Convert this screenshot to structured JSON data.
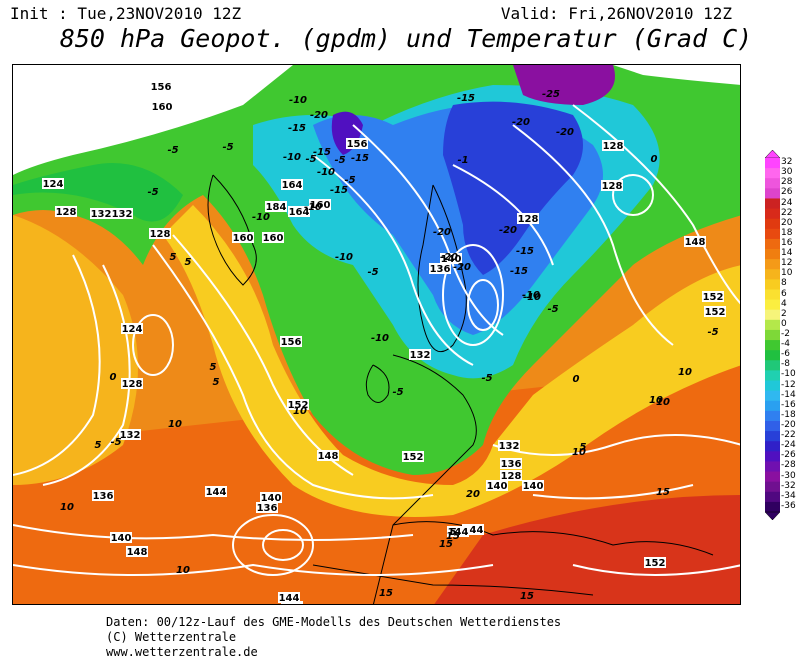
{
  "header": {
    "init": "Init : Tue,23NOV2010 12Z",
    "valid": "Valid: Fri,26NOV2010 12Z",
    "title": "850 hPa Geopot. (gpdm) und Temperatur (Grad C)"
  },
  "footer": {
    "line1": "Daten: 00/12z-Lauf des GME-Modells des Deutschen Wetterdienstes",
    "line2": "(C) Wetterzentrale",
    "line3": "www.wetterzentrale.de"
  },
  "colorbar": {
    "labels": [
      "32",
      "30",
      "28",
      "26",
      "24",
      "22",
      "20",
      "18",
      "16",
      "14",
      "12",
      "10",
      "8",
      "6",
      "4",
      "2",
      "0",
      "-2",
      "-4",
      "-6",
      "-8",
      "-10",
      "-12",
      "-14",
      "-16",
      "-18",
      "-20",
      "-22",
      "-24",
      "-26",
      "-28",
      "-30",
      "-32",
      "-34",
      "-36"
    ],
    "colors": [
      "#ff44ff",
      "#ff66ee",
      "#ee55dd",
      "#dd44cc",
      "#cc2222",
      "#d82a1a",
      "#e03a10",
      "#e84a10",
      "#ee6a10",
      "#f07e10",
      "#f49a18",
      "#f6b41c",
      "#f8cc20",
      "#fae030",
      "#fbee40",
      "#f6f47a",
      "#b4e84a",
      "#7ed838",
      "#40c830",
      "#20c040",
      "#20c878",
      "#20d0b0",
      "#20c8d8",
      "#30b8f0",
      "#2aa0f0",
      "#3080f0",
      "#3060e8",
      "#2840d8",
      "#3020c8",
      "#5010c0",
      "#7010b0",
      "#8a10a0",
      "#701090",
      "#500880",
      "#300060"
    ]
  },
  "map_labels": {
    "geopotential": [
      "156",
      "160",
      "156",
      "164",
      "184",
      "164",
      "160",
      "160",
      "160",
      "132",
      "132",
      "128",
      "124",
      "128",
      "128",
      "124",
      "128",
      "132",
      "136",
      "140",
      "144",
      "140",
      "136",
      "144",
      "148",
      "148",
      "152",
      "156",
      "152",
      "148",
      "152",
      "152",
      "128",
      "128",
      "140",
      "140",
      "140",
      "136",
      "132",
      "132",
      "128",
      "136",
      "144",
      "144",
      "152",
      "144"
    ],
    "temperature": [
      "-10",
      "-15",
      "-20",
      "-15",
      "-10",
      "-5",
      "-5",
      "-5",
      "-5",
      "-5",
      "-10",
      "-15",
      "-10",
      "-5",
      "-10",
      "-15",
      "-1",
      "-10",
      "-5",
      "5",
      "5",
      "0",
      "5",
      "5",
      "10",
      "5",
      "-5",
      "-15",
      "-20",
      "-25",
      "-20",
      "-20",
      "-15",
      "-5",
      "-10",
      "-5",
      "0",
      "5",
      "10",
      "10",
      "10",
      "15",
      "15",
      "15",
      "15",
      "20",
      "15",
      "10",
      "10",
      "-20",
      "-20",
      "-20",
      "-15",
      "-10",
      "-10",
      "-5",
      "5",
      "10",
      "10",
      "0",
      "-5"
    ]
  },
  "colors": {
    "land_border": "#000000",
    "isoline": "#ffffff"
  }
}
